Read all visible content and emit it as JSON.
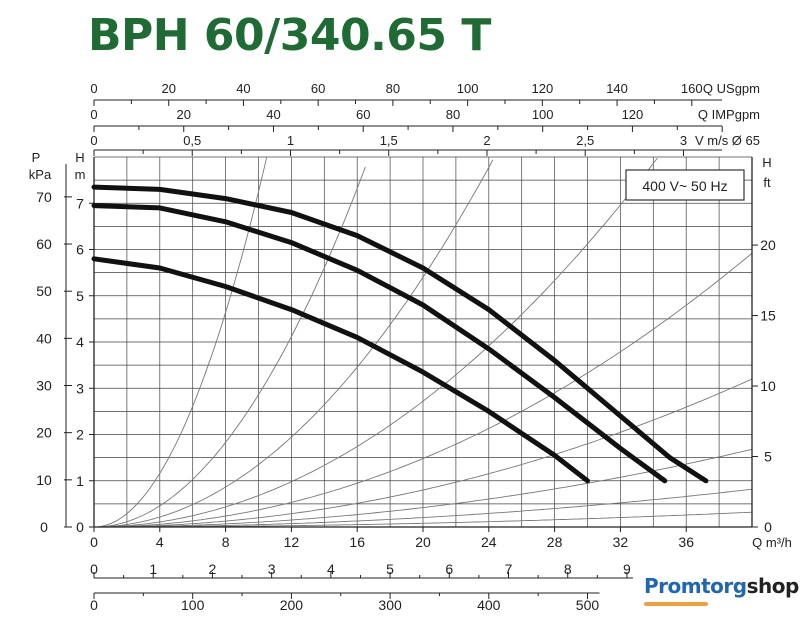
{
  "title": "BPH 60/340.65 T",
  "brand": {
    "part1": "Promtorg",
    "part2": "shop",
    "color1": "#1f66b3",
    "color2": "#222222",
    "accent": "#f0a23a"
  },
  "chart_data": {
    "type": "line",
    "title": "BPH 60/340.65 T",
    "legend_box": "400 V~ 50 Hz",
    "grid": true,
    "primary_x": {
      "label": "Q m³/h",
      "range": [
        0,
        40
      ],
      "ticks": [
        0,
        4,
        8,
        12,
        16,
        20,
        24,
        28,
        32,
        36
      ]
    },
    "left_y": {
      "label": "H m",
      "range": [
        0,
        8
      ],
      "ticks": [
        0,
        1,
        2,
        3,
        4,
        5,
        6,
        7
      ]
    },
    "left_y_p": {
      "label": "P kPa",
      "ticks": [
        0,
        10,
        20,
        30,
        40,
        50,
        60,
        70
      ]
    },
    "right_y": {
      "label": "H ft",
      "ticks": [
        0,
        5,
        10,
        15,
        20
      ]
    },
    "top_axes": [
      {
        "label": "Q USgpm",
        "ticks": [
          "0",
          "20",
          "40",
          "60",
          "80",
          "100",
          "120",
          "140",
          "160"
        ],
        "values": [
          0,
          20,
          40,
          60,
          80,
          100,
          120,
          140,
          160
        ],
        "factor": 4.4029
      },
      {
        "label": "Q IMPgpm",
        "ticks": [
          "0",
          "20",
          "40",
          "60",
          "80",
          "100",
          "120"
        ],
        "values": [
          0,
          20,
          40,
          60,
          80,
          100,
          120
        ],
        "factor": 3.6662
      },
      {
        "label": "V m/s Ø 65",
        "ticks": [
          "0",
          "0,5",
          "1",
          "1,5",
          "2",
          "2,5",
          "3"
        ],
        "values": [
          0,
          0.5,
          1,
          1.5,
          2,
          2.5,
          3
        ],
        "factor": 0.08372
      }
    ],
    "bottom_axes": [
      {
        "ticks": [
          "0",
          "1",
          "2",
          "3",
          "4",
          "5",
          "6",
          "7",
          "8",
          "9"
        ],
        "values": [
          0,
          1,
          2,
          3,
          4,
          5,
          6,
          7,
          8,
          9
        ],
        "factor": 0.2778
      },
      {
        "ticks": [
          "0",
          "100",
          "200",
          "300",
          "400",
          "500"
        ],
        "values": [
          0,
          100,
          200,
          300,
          400,
          500
        ],
        "factor": 16.667
      }
    ],
    "series": [
      {
        "x": [
          0,
          4,
          8,
          12,
          16,
          20,
          24,
          28,
          32,
          35,
          37.2
        ],
        "y": [
          7.35,
          7.3,
          7.1,
          6.8,
          6.3,
          5.6,
          4.7,
          3.6,
          2.4,
          1.5,
          1.0
        ]
      },
      {
        "x": [
          0,
          4,
          8,
          12,
          16,
          20,
          24,
          28,
          32,
          34.7
        ],
        "y": [
          6.95,
          6.9,
          6.6,
          6.15,
          5.55,
          4.8,
          3.85,
          2.8,
          1.7,
          1.0
        ]
      },
      {
        "x": [
          0,
          4,
          8,
          12,
          16,
          20,
          24,
          28,
          30.0
        ],
        "y": [
          5.8,
          5.6,
          5.2,
          4.7,
          4.1,
          3.35,
          2.5,
          1.55,
          1.0
        ]
      }
    ],
    "system_curve_k": [
      0.0725,
      0.0286,
      0.0135,
      0.0068,
      0.0037,
      0.002,
      0.00105,
      0.00051,
      0.0002
    ]
  }
}
